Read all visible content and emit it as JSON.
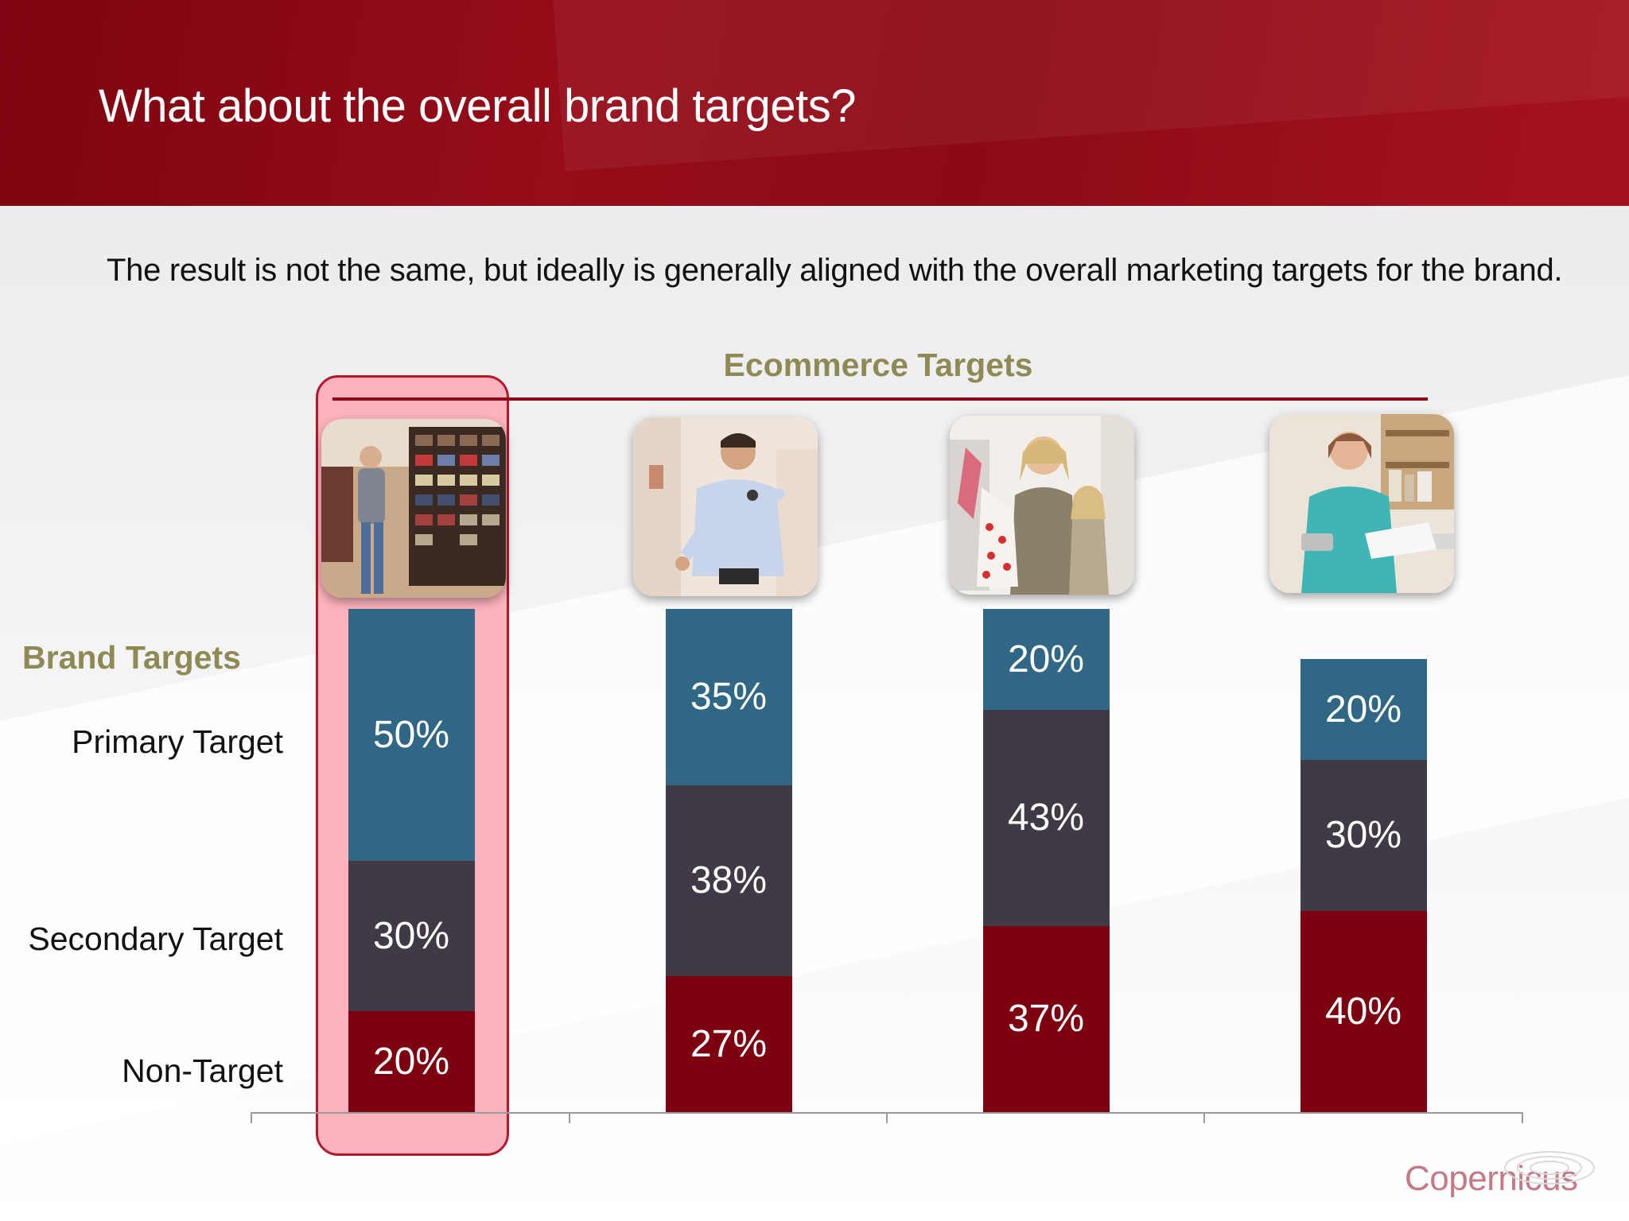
{
  "slide": {
    "title": "What about the overall brand targets?",
    "subtitle": "The result is not the same, but ideally is generally aligned with the overall marketing targets for the brand.",
    "ecommerce_label": "Ecommerce Targets",
    "brand_label": "Brand Targets",
    "logo_text": "Copernicus"
  },
  "colors": {
    "header": "#8c0a16",
    "primary": "#2f6785",
    "secondary": "#403a47",
    "non_target": "#7d0010",
    "highlight": "#fdb2bd",
    "accent_text": "#8f8a55"
  },
  "chart_data": {
    "type": "bar",
    "stacked": true,
    "categories": [
      "",
      "",
      "",
      ""
    ],
    "series": [
      {
        "name": "Non-Target",
        "values": [
          20,
          27,
          37,
          40
        ],
        "labels": [
          "20%",
          "27%",
          "37%",
          "40%"
        ]
      },
      {
        "name": "Secondary Target",
        "values": [
          30,
          38,
          43,
          30
        ],
        "labels": [
          "30%",
          "38%",
          "43%",
          "30%"
        ]
      },
      {
        "name": "Primary Target",
        "values": [
          50,
          35,
          20,
          20
        ],
        "labels": [
          "50%",
          "35%",
          "20%",
          "20%"
        ]
      }
    ],
    "ylim": [
      0,
      100
    ],
    "grid": false,
    "legend": "left",
    "images": [
      "man-browsing-store-photo",
      "man-checking-watch-photo",
      "mother-daughter-shopping-photo",
      "woman-online-shopping-photo"
    ]
  }
}
